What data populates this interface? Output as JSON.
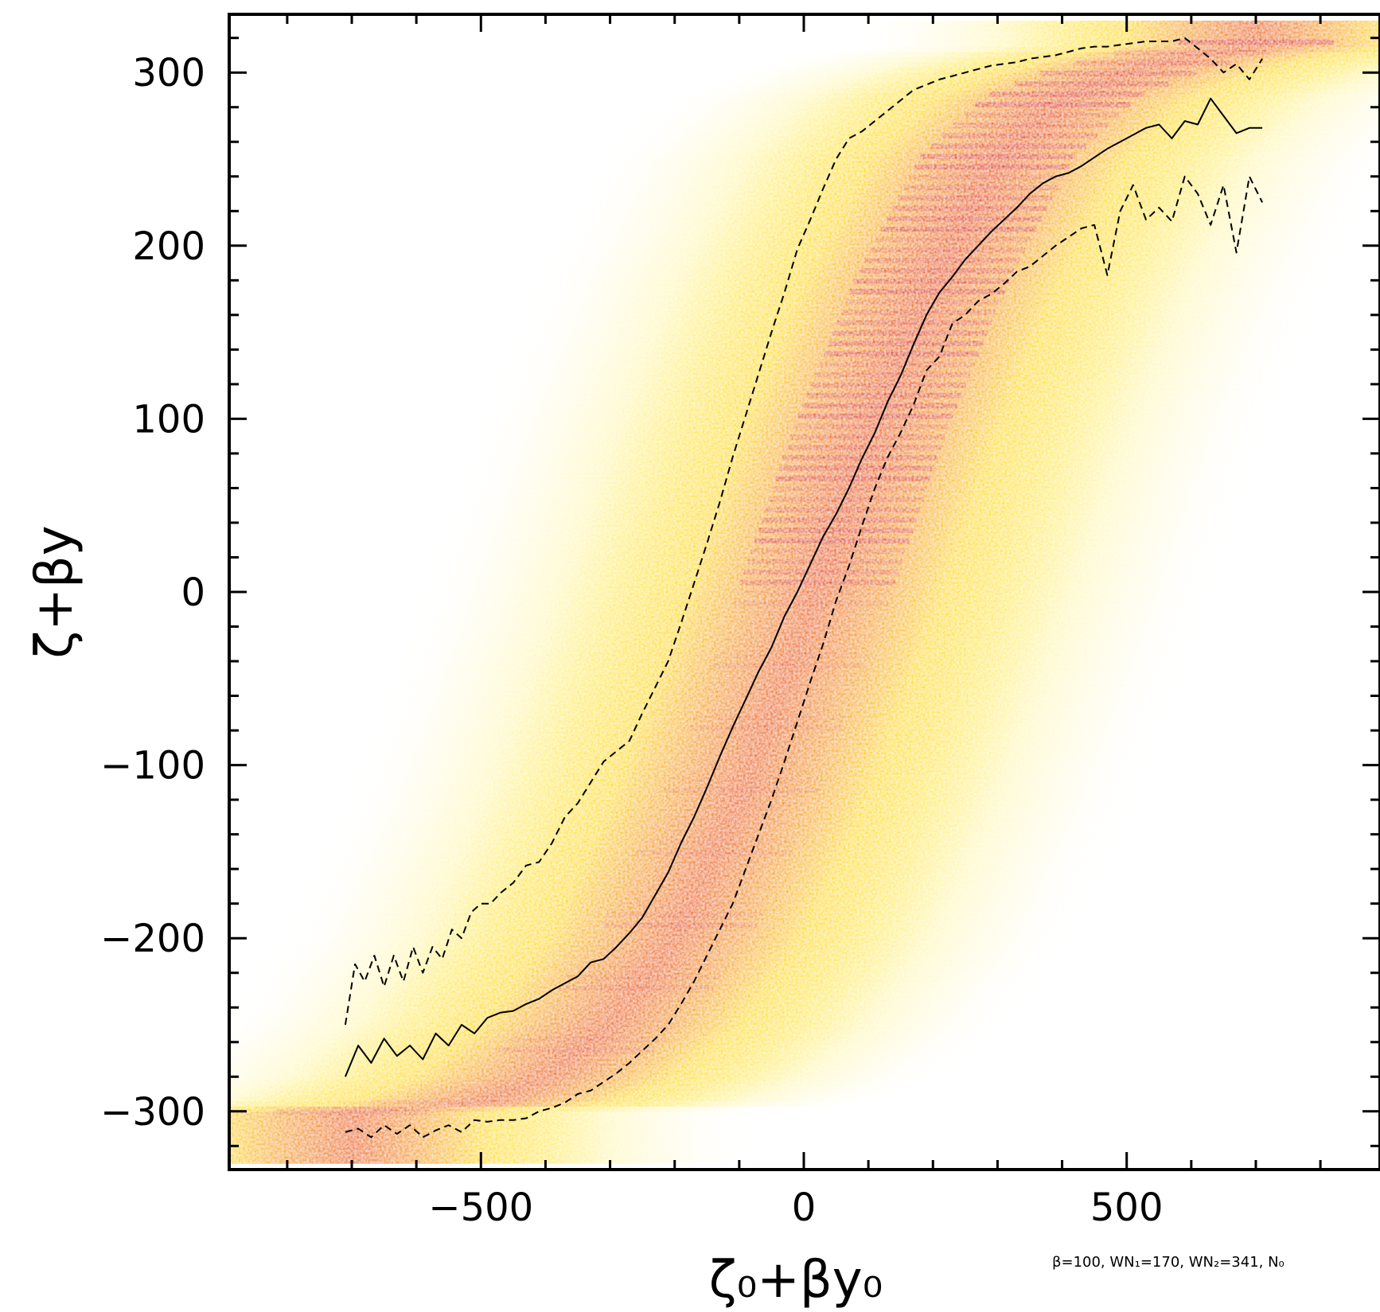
{
  "chart_data": {
    "type": "heatmap",
    "title": "",
    "xlabel": "ζ₀+βy₀",
    "ylabel": "ζ+βy",
    "xlim": [
      -900,
      900
    ],
    "ylim": [
      -333,
      333
    ],
    "x_ticks": [
      {
        "value": -500,
        "label": "−500"
      },
      {
        "value": 0,
        "label": "0"
      },
      {
        "value": 500,
        "label": "500"
      }
    ],
    "y_ticks": [
      {
        "value": 300,
        "label": "300"
      },
      {
        "value": 200,
        "label": "200"
      },
      {
        "value": 100,
        "label": "100"
      },
      {
        "value": 0,
        "label": "0"
      },
      {
        "value": -100,
        "label": "−100"
      },
      {
        "value": -200,
        "label": "−200"
      },
      {
        "value": -300,
        "label": "−300"
      }
    ],
    "annotation": "β=100, WN₁=170, WN₂=341, N₀",
    "colormap": [
      "#ffffff",
      "#fff4a0",
      "#ffe000",
      "#ffaa00",
      "#f05a00",
      "#d81000"
    ],
    "grid": false,
    "density": {
      "description_free": true,
      "ridge_x": [
        -700,
        -600,
        -500,
        -400,
        -300,
        -200,
        -100,
        0,
        100,
        200,
        300,
        400,
        500,
        600,
        700
      ],
      "ridge_y": [
        -300,
        -297,
        -295,
        -280,
        -250,
        -200,
        -120,
        -20,
        90,
        180,
        250,
        285,
        300,
        310,
        315
      ],
      "y_extent": [
        -330,
        330
      ]
    },
    "series": [
      {
        "name": "",
        "style": "solid",
        "x": [
          -710,
          -690,
          -670,
          -650,
          -630,
          -610,
          -590,
          -570,
          -550,
          -530,
          -510,
          -490,
          -470,
          -450,
          -430,
          -410,
          -390,
          -370,
          -350,
          -330,
          -310,
          -290,
          -270,
          -250,
          -230,
          -210,
          -190,
          -170,
          -150,
          -130,
          -110,
          -90,
          -70,
          -50,
          -30,
          -10,
          10,
          30,
          50,
          70,
          90,
          110,
          130,
          150,
          170,
          190,
          210,
          230,
          250,
          270,
          290,
          310,
          330,
          350,
          370,
          390,
          410,
          430,
          450,
          470,
          490,
          510,
          530,
          550,
          570,
          590,
          610,
          630,
          650,
          670,
          690,
          710
        ],
        "y": [
          -280,
          -262,
          -272,
          -258,
          -268,
          -262,
          -270,
          -255,
          -262,
          -250,
          -255,
          -246,
          -243,
          -242,
          -238,
          -235,
          -230,
          -226,
          -222,
          -214,
          -212,
          -205,
          -197,
          -188,
          -175,
          -162,
          -145,
          -130,
          -113,
          -95,
          -78,
          -62,
          -46,
          -32,
          -14,
          0,
          16,
          32,
          45,
          60,
          77,
          92,
          110,
          125,
          143,
          160,
          173,
          182,
          192,
          200,
          208,
          215,
          222,
          230,
          236,
          240,
          242,
          246,
          251,
          256,
          260,
          264,
          268,
          270,
          262,
          272,
          270,
          285,
          275,
          265,
          268,
          268
        ]
      },
      {
        "name": "",
        "style": "dashed",
        "x": [
          -710,
          -695,
          -680,
          -665,
          -650,
          -635,
          -620,
          -605,
          -590,
          -575,
          -560,
          -545,
          -530,
          -515,
          -500,
          -485,
          -470,
          -450,
          -430,
          -410,
          -390,
          -370,
          -350,
          -330,
          -310,
          -290,
          -270,
          -250,
          -230,
          -210,
          -190,
          -170,
          -150,
          -130,
          -110,
          -90,
          -70,
          -50,
          -30,
          -10,
          10,
          30,
          50,
          70,
          90,
          110,
          130,
          150,
          170,
          190,
          210,
          230,
          250,
          270,
          290,
          310,
          330,
          350,
          370,
          390,
          410,
          430,
          450,
          470,
          490,
          510,
          530,
          550,
          570,
          590,
          610,
          630,
          650,
          670,
          690,
          710
        ],
        "y": [
          -250,
          -215,
          -225,
          -210,
          -228,
          -210,
          -225,
          -205,
          -220,
          -205,
          -212,
          -195,
          -200,
          -185,
          -180,
          -180,
          -174,
          -168,
          -158,
          -156,
          -145,
          -130,
          -122,
          -110,
          -98,
          -92,
          -86,
          -70,
          -55,
          -40,
          -18,
          5,
          28,
          52,
          78,
          102,
          126,
          150,
          173,
          198,
          215,
          233,
          250,
          262,
          266,
          272,
          278,
          284,
          290,
          293,
          296,
          298,
          300,
          302,
          304,
          305,
          306,
          308,
          309,
          310,
          312,
          314,
          315,
          315,
          316,
          317,
          318,
          318,
          318,
          320,
          314,
          308,
          300,
          305,
          296,
          308
        ]
      },
      {
        "name": "",
        "style": "dashed",
        "x": [
          -710,
          -690,
          -670,
          -650,
          -630,
          -610,
          -590,
          -570,
          -550,
          -530,
          -510,
          -490,
          -470,
          -450,
          -430,
          -410,
          -390,
          -370,
          -350,
          -330,
          -310,
          -290,
          -270,
          -250,
          -230,
          -210,
          -190,
          -170,
          -150,
          -130,
          -110,
          -90,
          -70,
          -50,
          -30,
          -10,
          10,
          30,
          50,
          70,
          90,
          110,
          130,
          150,
          170,
          190,
          210,
          230,
          250,
          270,
          290,
          310,
          330,
          350,
          370,
          390,
          410,
          430,
          450,
          470,
          490,
          510,
          530,
          550,
          570,
          590,
          610,
          630,
          650,
          670,
          690,
          710
        ],
        "y": [
          -312,
          -310,
          -315,
          -308,
          -313,
          -308,
          -315,
          -311,
          -308,
          -312,
          -305,
          -306,
          -305,
          -305,
          -304,
          -300,
          -298,
          -295,
          -290,
          -288,
          -283,
          -278,
          -272,
          -265,
          -258,
          -250,
          -238,
          -225,
          -210,
          -195,
          -180,
          -160,
          -140,
          -120,
          -98,
          -75,
          -52,
          -30,
          -5,
          15,
          38,
          60,
          78,
          92,
          108,
          128,
          136,
          155,
          160,
          168,
          172,
          178,
          185,
          188,
          194,
          200,
          205,
          210,
          212,
          183,
          220,
          235,
          215,
          222,
          214,
          240,
          230,
          212,
          235,
          196,
          240,
          225
        ]
      }
    ]
  }
}
